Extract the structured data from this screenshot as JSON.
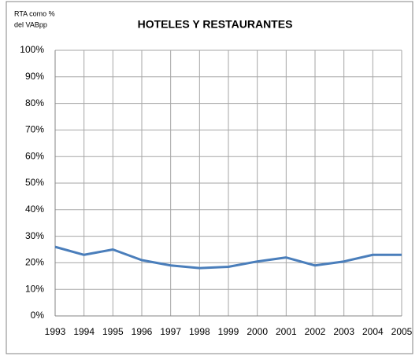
{
  "chart_data": {
    "type": "line",
    "title": "HOTELES Y RESTAURANTES",
    "y_label": [
      "RTA como %",
      "del VABpp"
    ],
    "categories": [
      "1993",
      "1994",
      "1995",
      "1996",
      "1997",
      "1998",
      "1999",
      "2000",
      "2001",
      "2002",
      "2003",
      "2004",
      "2005"
    ],
    "series": [
      {
        "name": "HOTELES Y RESTAURANTES",
        "color": "#4a7ebb",
        "values": [
          26,
          23,
          25,
          21,
          19,
          18,
          18.5,
          20.5,
          22,
          19,
          20.5,
          23,
          23
        ]
      }
    ],
    "ylim": [
      0,
      100
    ],
    "yticks": [
      {
        "value": 0,
        "label": "0%"
      },
      {
        "value": 10,
        "label": "10%"
      },
      {
        "value": 20,
        "label": "20%"
      },
      {
        "value": 30,
        "label": "30%"
      },
      {
        "value": 40,
        "label": "40%"
      },
      {
        "value": 50,
        "label": "50%"
      },
      {
        "value": 60,
        "label": "60%"
      },
      {
        "value": 70,
        "label": "70%"
      },
      {
        "value": 80,
        "label": "80%"
      },
      {
        "value": 90,
        "label": "90%"
      },
      {
        "value": 100,
        "label": "100%"
      }
    ],
    "grid": true
  }
}
